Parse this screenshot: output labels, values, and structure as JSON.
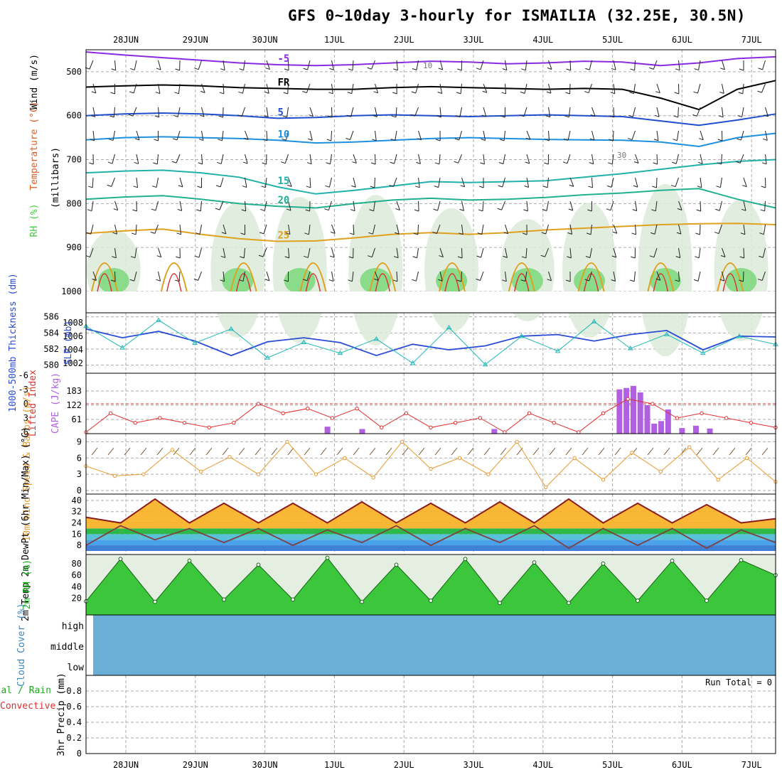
{
  "title": "GFS 0~10day 3-hourly for ISMAILIA (32.25E, 30.5N)",
  "dates": [
    "28JUN",
    "29JUN",
    "30JUN",
    "1JUL",
    "2JUL",
    "3JUL",
    "4JUL",
    "5JUL",
    "6JUL",
    "7JUL"
  ],
  "colors": {
    "rh": "#44cc44",
    "temperature": "#e65a1e",
    "wind": "#000000",
    "thickness": "#2a4bd7",
    "slp": "#22b8b8",
    "cape": "#b060e0",
    "lifted": "#e03030",
    "wind10": "#e89a30",
    "tempcolor": "#8b1a1a",
    "rh2m": "#11bb11",
    "cloud": "#6baed6"
  },
  "chart_data": [
    {
      "type": "contour",
      "panel": "upper-air",
      "y_axis_label": "(millibars)",
      "legend_labels": [
        "RH (%)",
        "Temperature (°C)",
        "Wind (m/s)"
      ],
      "yticks": [
        500,
        600,
        700,
        800,
        900,
        1000
      ],
      "ylim": [
        1000,
        450
      ],
      "isotherms": [
        {
          "label": "-5",
          "pressure_hPa": [
            455,
            462,
            468,
            474,
            480,
            484,
            486,
            484,
            480,
            476,
            478,
            482,
            480,
            476,
            478,
            486,
            480,
            470,
            466
          ]
        },
        {
          "label": "FR",
          "pressure_hPa": [
            535,
            532,
            530,
            532,
            536,
            538,
            540,
            540,
            536,
            534,
            536,
            538,
            540,
            538,
            540,
            560,
            586,
            540,
            520
          ]
        },
        {
          "label": "5",
          "pressure_hPa": [
            600,
            596,
            594,
            596,
            600,
            606,
            604,
            600,
            598,
            600,
            602,
            600,
            598,
            600,
            602,
            612,
            622,
            610,
            596
          ]
        },
        {
          "label": "10",
          "pressure_hPa": [
            655,
            650,
            648,
            650,
            652,
            656,
            662,
            660,
            656,
            652,
            650,
            652,
            654,
            655,
            656,
            660,
            670,
            650,
            640
          ]
        },
        {
          "label": "15",
          "pressure_hPa": [
            730,
            726,
            724,
            730,
            740,
            762,
            778,
            770,
            760,
            750,
            752,
            750,
            748,
            740,
            732,
            722,
            712,
            704,
            700
          ]
        },
        {
          "label": "20",
          "pressure_hPa": [
            790,
            785,
            782,
            790,
            800,
            806,
            810,
            800,
            792,
            788,
            792,
            790,
            786,
            780,
            776,
            770,
            766,
            790,
            810
          ]
        },
        {
          "label": "25",
          "pressure_hPa": [
            868,
            862,
            858,
            870,
            880,
            886,
            885,
            878,
            870,
            866,
            870,
            866,
            860,
            856,
            852,
            848,
            846,
            845,
            848
          ]
        }
      ],
      "contour_labels": [
        "10",
        "30"
      ]
    },
    {
      "type": "line",
      "panel": "thickness-slp",
      "y_axis_label": "1000-500mb Thickness (dm)",
      "y2_axis_label": "SLP (mb)",
      "yticks": [
        580,
        582,
        584,
        586
      ],
      "y2ticks": [
        1002,
        1004,
        1006,
        1008
      ],
      "series": [
        {
          "axis": "thickness",
          "values": [
            584.5,
            583.4,
            584.2,
            583.0,
            581.2,
            582.9,
            583.4,
            582.8,
            581.2,
            582.6,
            581.9,
            582.4,
            583.6,
            583.8,
            583.0,
            583.8,
            584.3,
            581.9,
            583.6,
            583.5
          ]
        },
        {
          "axis": "slp",
          "values": [
            1007.5,
            1004.3,
            1008.4,
            1005.0,
            1007.1,
            1002.8,
            1005.1,
            1003.5,
            1005.6,
            1002.0,
            1007.3,
            1001.8,
            1006.0,
            1003.8,
            1008.2,
            1004.2,
            1006.3,
            1003.5,
            1006.0,
            1004.8
          ]
        }
      ]
    },
    {
      "type": "bar",
      "panel": "cape-lifted",
      "y_axis_label": "CAPE (J/kg)",
      "y2_axis_label": "Lifted Index",
      "yticks": [
        61,
        122,
        183
      ],
      "y2ticks": [
        -6,
        -3,
        0,
        3,
        6
      ],
      "cape_values": [
        [
          3.5,
          30
        ],
        [
          4.0,
          20
        ],
        [
          5.9,
          20
        ],
        [
          7.7,
          190
        ],
        [
          7.8,
          196
        ],
        [
          7.9,
          205
        ],
        [
          8.0,
          177
        ],
        [
          8.1,
          122
        ],
        [
          8.2,
          43
        ],
        [
          8.3,
          54
        ],
        [
          8.4,
          104
        ],
        [
          8.6,
          24
        ],
        [
          8.8,
          34
        ],
        [
          9.0,
          22
        ]
      ],
      "lifted_index": [
        6,
        2,
        4,
        3,
        4,
        5,
        4,
        0,
        2,
        1,
        3,
        1,
        5,
        2,
        5,
        4,
        3,
        6,
        2,
        4,
        6,
        2,
        -1,
        0,
        3,
        2,
        3,
        4,
        5
      ]
    },
    {
      "type": "line",
      "panel": "wind10m",
      "y_axis_label": "10m Wind Speed & Barbs (m/s)",
      "yticks": [
        0,
        3,
        6,
        9
      ],
      "values": [
        4.5,
        2.7,
        3.0,
        7.5,
        3.5,
        6.2,
        3.0,
        9.0,
        3.0,
        6.0,
        2.4,
        9.0,
        4.0,
        6.0,
        3.0,
        9.0,
        0.6,
        6.0,
        2.0,
        7.0,
        3.5,
        8.0,
        2.0,
        6.0,
        1.6
      ]
    },
    {
      "type": "area",
      "panel": "temp-dewpoint",
      "y_axis_label": "2m Temp 2m DewPt (6hr Min/Max) (°C)",
      "yticks": [
        8,
        16,
        24,
        32,
        40
      ],
      "temperature": [
        28,
        24,
        41,
        24,
        38,
        24,
        38,
        24,
        39,
        24,
        38,
        24,
        39,
        24,
        41,
        24,
        38,
        24,
        37,
        24,
        27
      ],
      "dewpoint": [
        8,
        22,
        12,
        20,
        10,
        20,
        8,
        19,
        10,
        22,
        8,
        20,
        10,
        22,
        6,
        20,
        8,
        20,
        6,
        19,
        10
      ]
    },
    {
      "type": "area",
      "panel": "rh2m",
      "y_axis_label": "2m RH (%)",
      "yticks": [
        20,
        40,
        60,
        80
      ],
      "values": [
        15,
        88,
        14,
        85,
        18,
        78,
        18,
        90,
        14,
        78,
        16,
        88,
        12,
        82,
        12,
        80,
        16,
        85,
        16,
        86,
        60
      ]
    },
    {
      "type": "area",
      "panel": "cloud",
      "y_axis_label": "Cloud Cover (%)",
      "levels": [
        "high",
        "middle",
        "low"
      ]
    },
    {
      "type": "bar",
      "panel": "precip",
      "y_axis_label": "3hr Precip (mm)",
      "legend_labels": [
        "Total / Rain",
        "Convective"
      ],
      "yticks": [
        0,
        0.2,
        0.4,
        0.6,
        0.8
      ],
      "annotation": "Run Total = 0"
    }
  ]
}
